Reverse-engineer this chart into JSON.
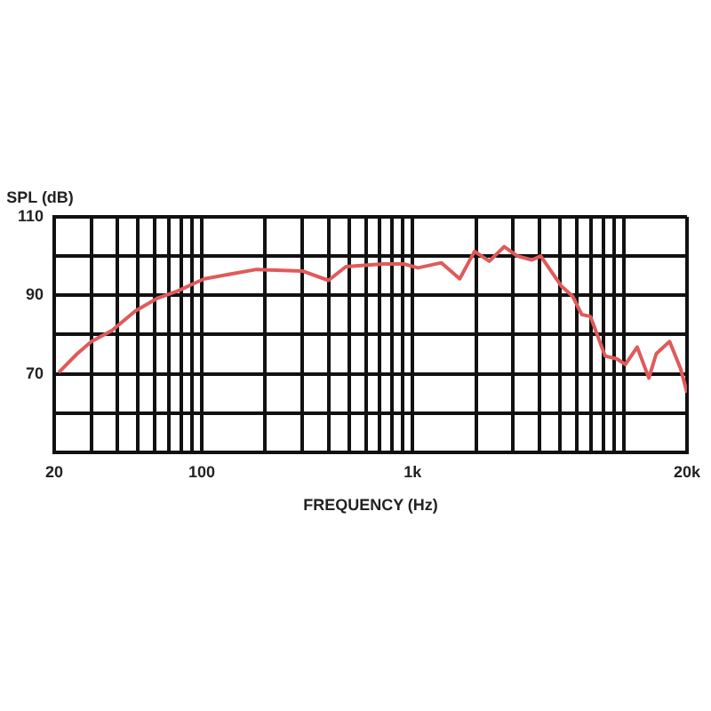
{
  "chart_data": {
    "type": "line",
    "xlabel": "FREQUENCY (Hz)",
    "ylabel": "SPL (dB)",
    "x": [
      21,
      25.7,
      30,
      37.5,
      48.4,
      62,
      77.1,
      90.8,
      103,
      182,
      300,
      399,
      483,
      728,
      908,
      1061,
      1370,
      1673,
      1966,
      2311,
      2721,
      3138,
      3683,
      4052,
      5066,
      5749,
      6335,
      6971,
      8184,
      9291,
      10220,
      11610,
      13190,
      14300,
      16540,
      18650,
      20000
    ],
    "values": [
      70.3,
      75.1,
      78.2,
      81,
      86,
      89.3,
      91.1,
      92.9,
      94.2,
      96.6,
      96.2,
      93.8,
      97.3,
      98,
      98,
      97,
      98.3,
      94.2,
      101.2,
      98.7,
      102.4,
      100,
      99,
      100,
      92.4,
      89.7,
      85.1,
      84.6,
      74.5,
      73.8,
      72.4,
      76.8,
      68.9,
      75.1,
      78.2,
      71.3,
      65.2
    ],
    "color": "#e05a5a",
    "log": "x",
    "grid": true,
    "xlim": [
      20,
      20000
    ],
    "xticks": [
      20,
      {
        "value": 30,
        "label": null
      },
      {
        "value": 40,
        "label": null
      },
      {
        "value": 50,
        "label": null
      },
      {
        "value": 60,
        "label": null
      },
      {
        "value": 70,
        "label": null
      },
      {
        "value": 80,
        "label": null
      },
      {
        "value": 90,
        "label": null
      },
      100,
      {
        "value": 200,
        "label": null
      },
      {
        "value": 300,
        "label": null
      },
      {
        "value": 400,
        "label": null
      },
      {
        "value": 500,
        "label": null
      },
      {
        "value": 600,
        "label": null
      },
      {
        "value": 700,
        "label": null
      },
      {
        "value": 800,
        "label": null
      },
      {
        "value": 900,
        "label": null
      },
      {
        "value": 1000,
        "label": "1k"
      },
      {
        "value": 2000,
        "label": null
      },
      {
        "value": 3000,
        "label": null
      },
      {
        "value": 4000,
        "label": null
      },
      {
        "value": 5000,
        "label": null
      },
      {
        "value": 6000,
        "label": null
      },
      {
        "value": 7000,
        "label": null
      },
      {
        "value": 8000,
        "label": null
      },
      {
        "value": 9000,
        "label": null
      },
      {
        "value": 10000,
        "label": null
      },
      {
        "value": 20000,
        "label": "20k"
      }
    ],
    "ylim": [
      50,
      110
    ],
    "yticks": [
      {
        "value": 50,
        "label": null
      },
      {
        "value": 60,
        "label": null
      },
      70,
      {
        "value": 80,
        "label": null
      },
      90,
      {
        "value": 100,
        "label": null
      },
      110
    ]
  }
}
